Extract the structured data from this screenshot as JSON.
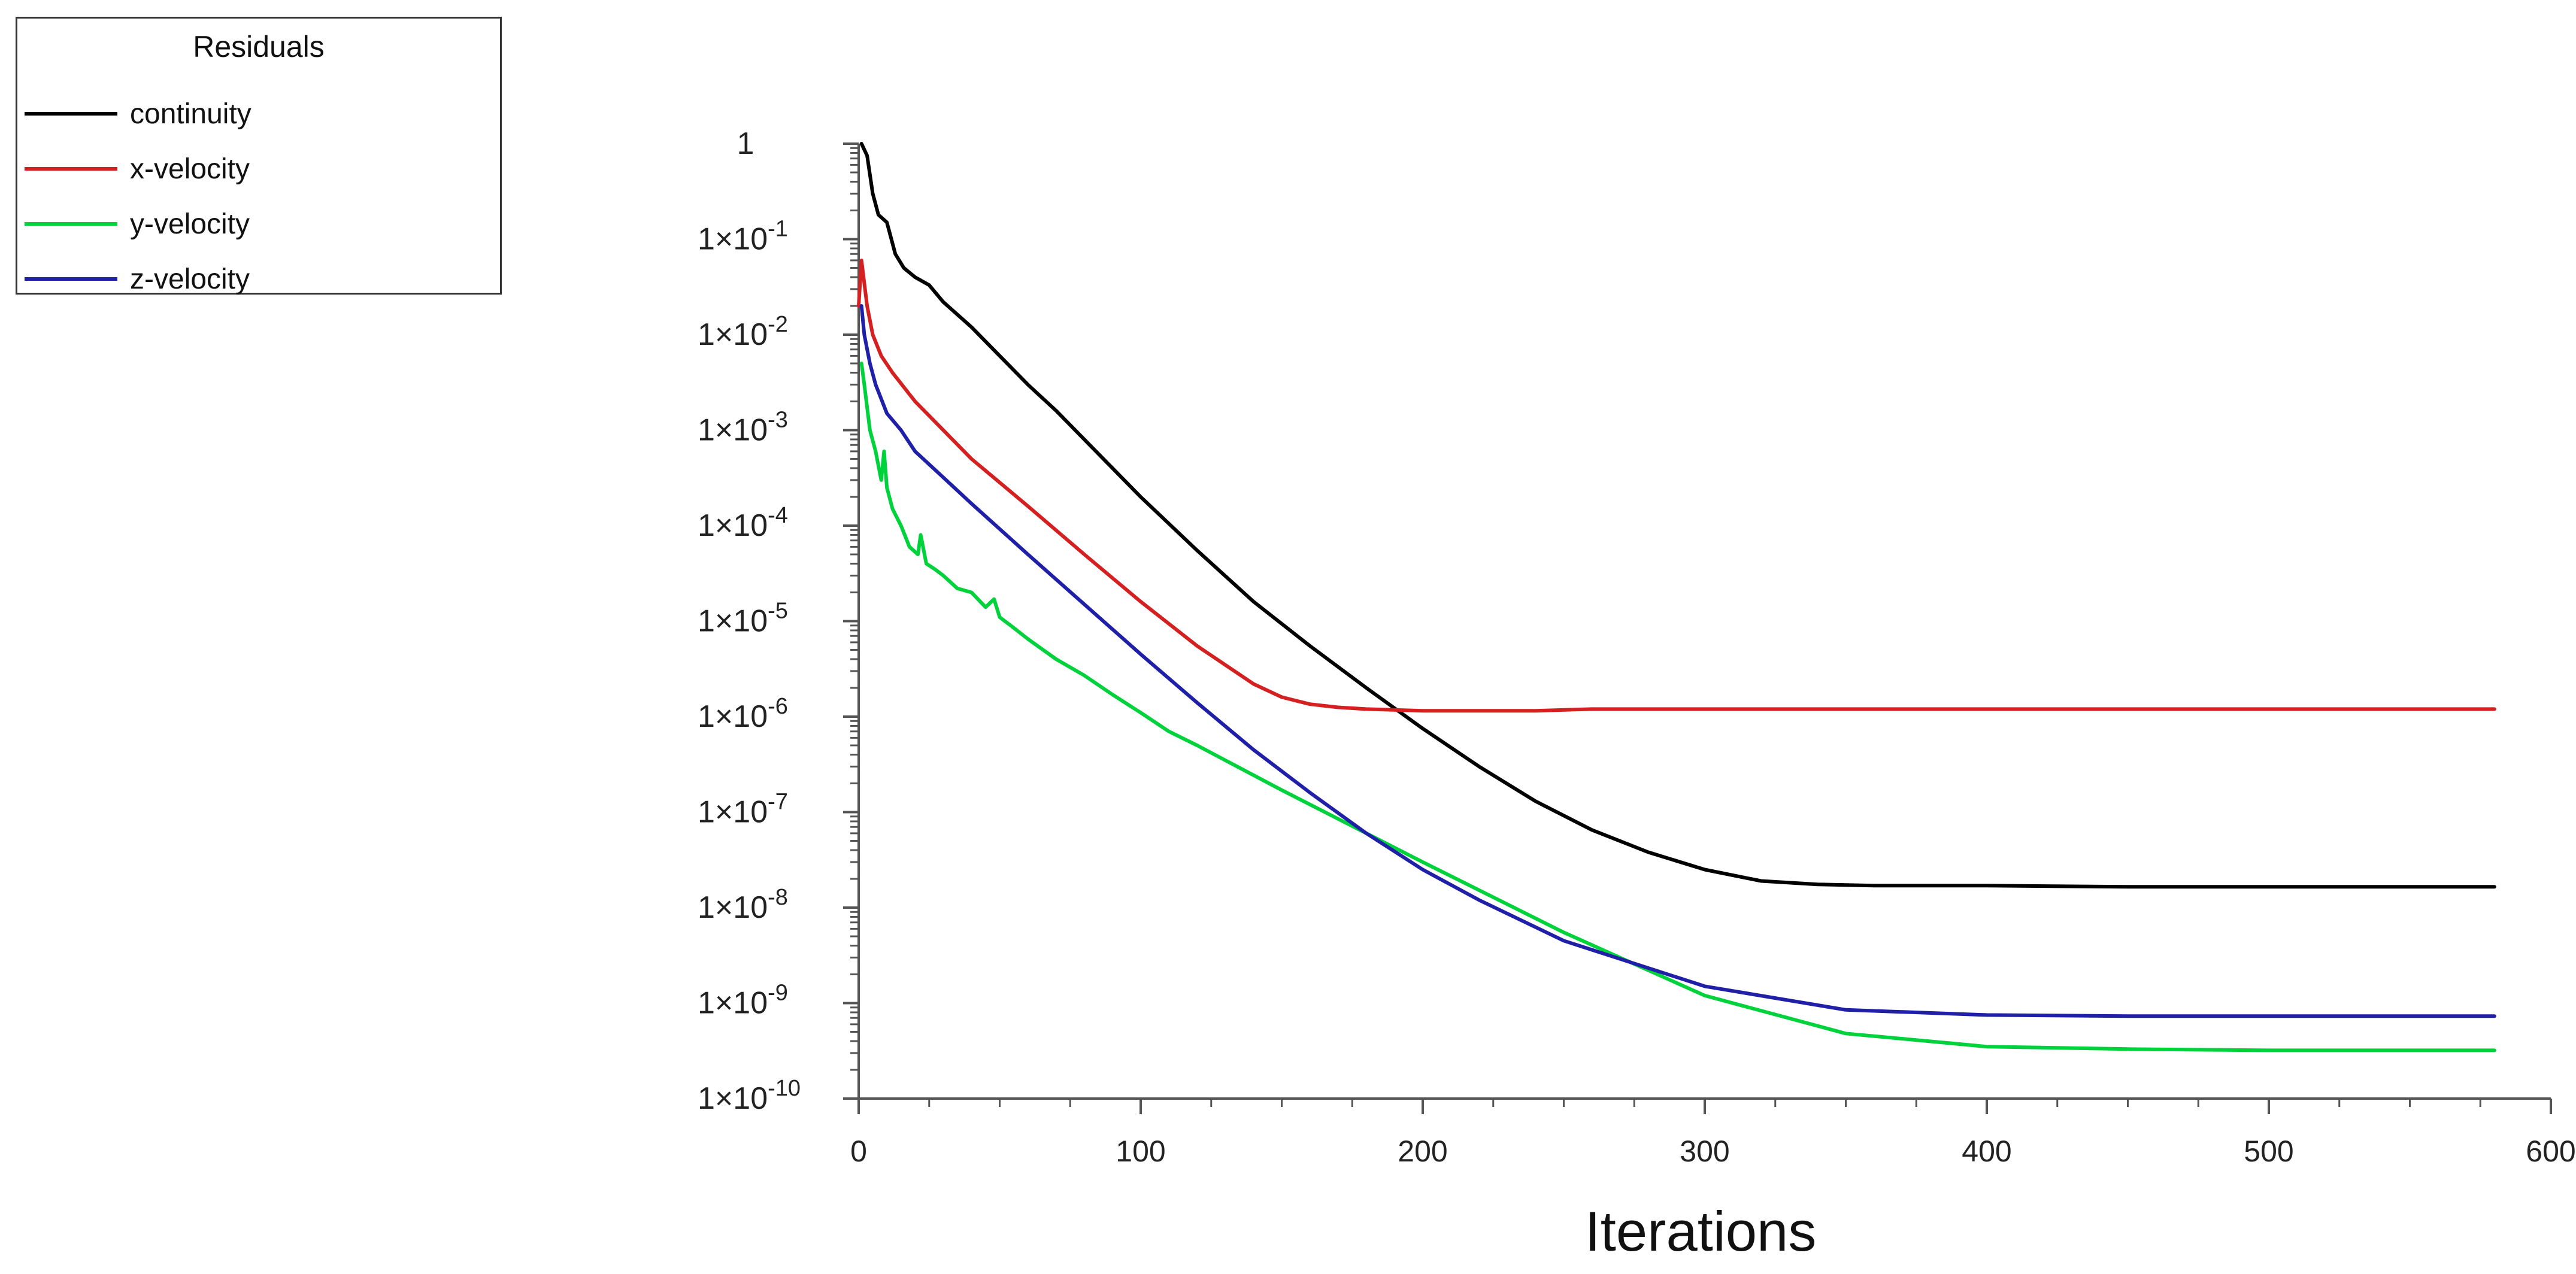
{
  "chart_data": {
    "type": "line",
    "title": "",
    "xlabel": "Iterations",
    "ylabel": "",
    "xlim": [
      0,
      600
    ],
    "yscale": "log",
    "ylim": [
      1e-10,
      1
    ],
    "x_ticks": [
      "0",
      "100",
      "200",
      "300",
      "400",
      "500",
      "600"
    ],
    "y_ticks": [
      {
        "mantissa": "1",
        "exponent": ""
      },
      {
        "mantissa": "1×10",
        "exponent": "-1"
      },
      {
        "mantissa": "1×10",
        "exponent": "-2"
      },
      {
        "mantissa": "1×10",
        "exponent": "-3"
      },
      {
        "mantissa": "1×10",
        "exponent": "-4"
      },
      {
        "mantissa": "1×10",
        "exponent": "-5"
      },
      {
        "mantissa": "1×10",
        "exponent": "-6"
      },
      {
        "mantissa": "1×10",
        "exponent": "-7"
      },
      {
        "mantissa": "1×10",
        "exponent": "-8"
      },
      {
        "mantissa": "1×10",
        "exponent": "-9"
      },
      {
        "mantissa": "1×10",
        "exponent": "-10"
      }
    ],
    "grid": false,
    "legend": {
      "title": "Residuals",
      "placement": "top-left"
    },
    "series": [
      {
        "name": "continuity",
        "color": "#000000",
        "x": [
          1,
          3,
          5,
          7,
          10,
          13,
          16,
          20,
          25,
          30,
          40,
          50,
          60,
          70,
          80,
          100,
          120,
          140,
          160,
          180,
          200,
          220,
          240,
          260,
          280,
          300,
          320,
          340,
          360,
          380,
          400,
          450,
          500,
          550,
          580
        ],
        "y": [
          1.0,
          0.75,
          0.3,
          0.18,
          0.15,
          0.07,
          0.05,
          0.04,
          0.033,
          0.022,
          0.012,
          0.006,
          0.003,
          0.0016,
          0.0008,
          0.0002,
          5.5e-05,
          1.6e-05,
          5.5e-06,
          2e-06,
          7.5e-07,
          3e-07,
          1.3e-07,
          6.5e-08,
          3.8e-08,
          2.5e-08,
          1.9e-08,
          1.75e-08,
          1.7e-08,
          1.7e-08,
          1.7e-08,
          1.65e-08,
          1.65e-08,
          1.65e-08,
          1.65e-08
        ]
      },
      {
        "name": "x-velocity",
        "color": "#d42020",
        "x": [
          0,
          1,
          3,
          5,
          8,
          12,
          20,
          30,
          40,
          60,
          80,
          100,
          120,
          140,
          150,
          160,
          170,
          180,
          200,
          220,
          240,
          260,
          300,
          400,
          500,
          580
        ],
        "y": [
          0.02,
          0.06,
          0.02,
          0.01,
          0.006,
          0.004,
          0.002,
          0.001,
          0.0005,
          0.00016,
          5e-05,
          1.6e-05,
          5.5e-06,
          2.2e-06,
          1.6e-06,
          1.35e-06,
          1.25e-06,
          1.2e-06,
          1.15e-06,
          1.15e-06,
          1.15e-06,
          1.2e-06,
          1.2e-06,
          1.2e-06,
          1.2e-06,
          1.2e-06
        ]
      },
      {
        "name": "y-velocity",
        "color": "#00d23c",
        "x": [
          1,
          2,
          4,
          6,
          8,
          9,
          10,
          12,
          15,
          18,
          21,
          22,
          24,
          27,
          30,
          35,
          40,
          45,
          48,
          50,
          55,
          60,
          70,
          80,
          90,
          100,
          110,
          120,
          150,
          200,
          250,
          300,
          350,
          400,
          450,
          500,
          580
        ],
        "y": [
          0.005,
          0.003,
          0.001,
          0.0006,
          0.0003,
          0.0006,
          0.00025,
          0.00015,
          0.0001,
          6e-05,
          5e-05,
          8e-05,
          4e-05,
          3.5e-05,
          3e-05,
          2.2e-05,
          2e-05,
          1.4e-05,
          1.7e-05,
          1.1e-05,
          8.5e-06,
          6.5e-06,
          4e-06,
          2.7e-06,
          1.7e-06,
          1.1e-06,
          7e-07,
          5e-07,
          1.7e-07,
          3e-08,
          5.5e-09,
          1.2e-09,
          4.8e-10,
          3.5e-10,
          3.3e-10,
          3.2e-10,
          3.2e-10
        ]
      },
      {
        "name": "z-velocity",
        "color": "#1f1fa8",
        "x": [
          1,
          2,
          4,
          6,
          10,
          15,
          20,
          30,
          40,
          60,
          80,
          100,
          120,
          140,
          160,
          180,
          200,
          220,
          250,
          300,
          350,
          400,
          450,
          500,
          580
        ],
        "y": [
          0.02,
          0.01,
          0.005,
          0.003,
          0.0015,
          0.001,
          0.0006,
          0.00032,
          0.00017,
          5e-05,
          1.5e-05,
          4.5e-06,
          1.4e-06,
          4.5e-07,
          1.6e-07,
          6e-08,
          2.5e-08,
          1.2e-08,
          4.5e-09,
          1.5e-09,
          8.5e-10,
          7.5e-10,
          7.3e-10,
          7.3e-10,
          7.3e-10
        ]
      }
    ]
  }
}
